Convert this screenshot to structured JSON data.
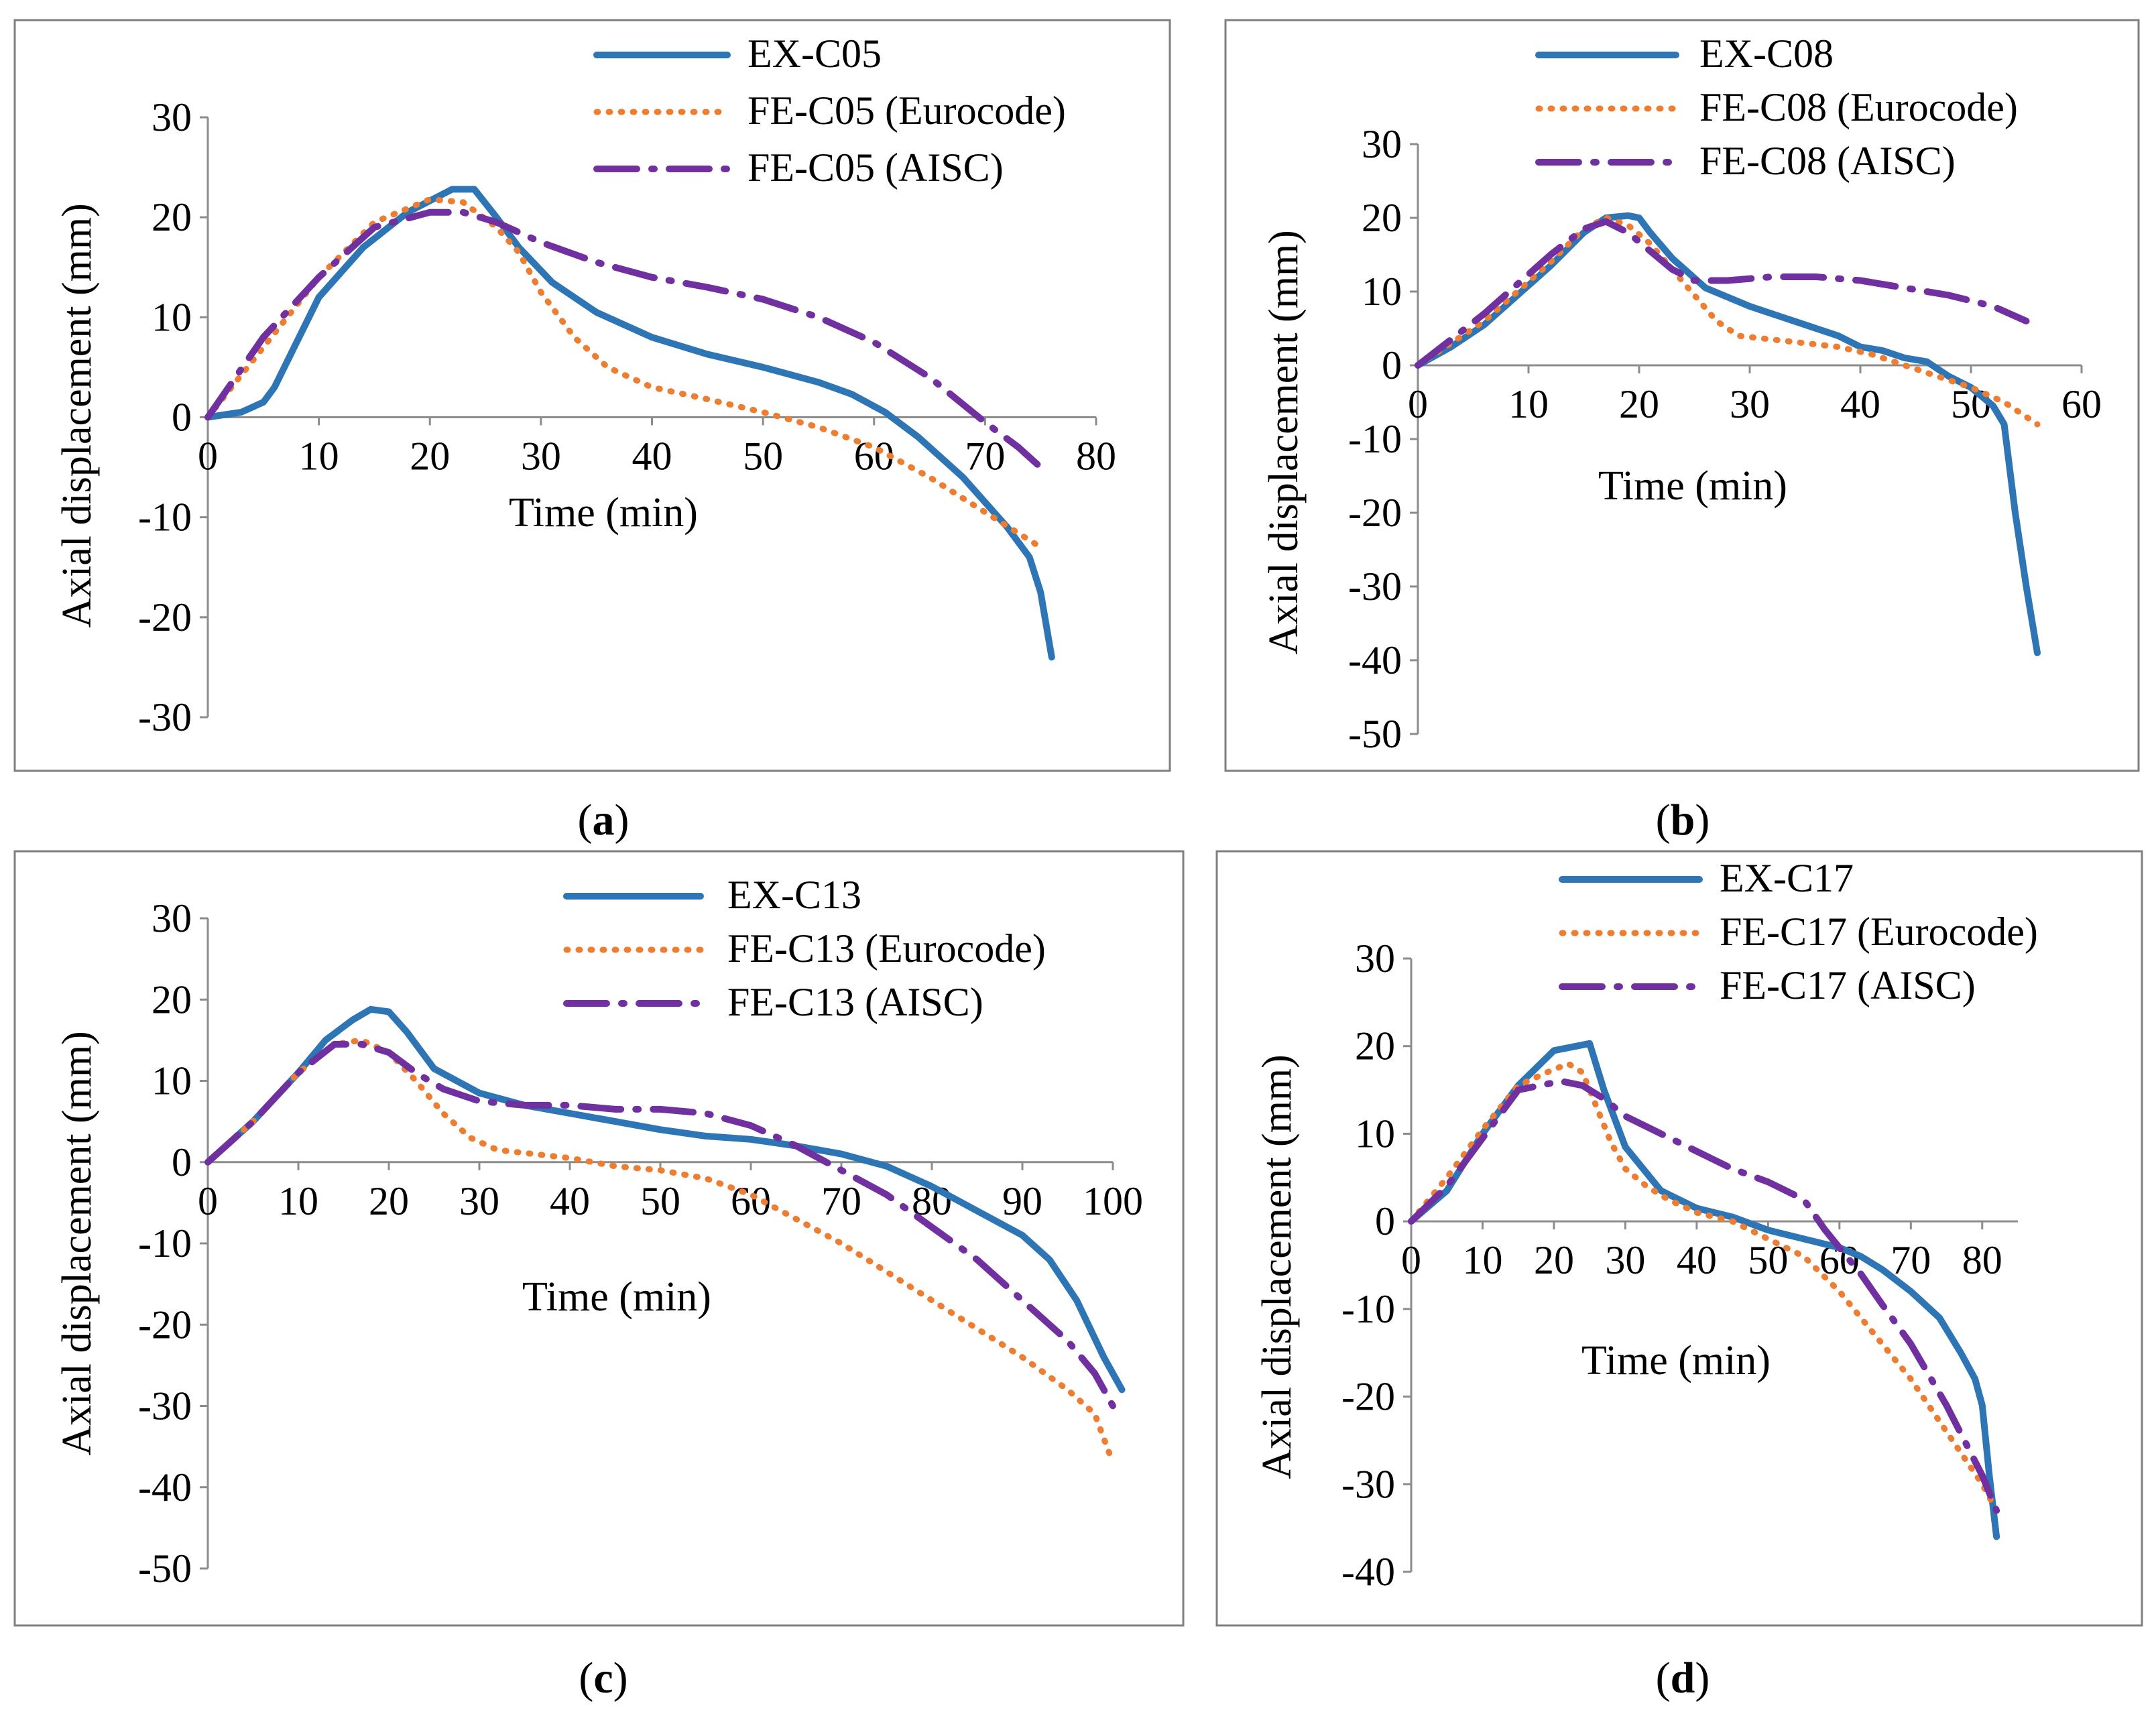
{
  "chart_data": [
    {
      "panel": "a",
      "type": "line",
      "caption": "a",
      "xlabel": "Time (min)",
      "ylabel": "Axial displacement (mm)",
      "xlim": [
        0,
        80
      ],
      "ylim": [
        -30,
        30
      ],
      "xticks": [
        "0",
        "10",
        "20",
        "30",
        "40",
        "50",
        "60",
        "70",
        "80"
      ],
      "yticks": [
        "30",
        "20",
        "10",
        "0",
        "-10",
        "-20",
        "-30"
      ],
      "colors": {
        "experiment": "#2e75b6",
        "eurocode": "#ed7d31",
        "aisc": "#7030a0"
      },
      "series": [
        {
          "name": "EX-C05",
          "style": "solid",
          "x": [
            0,
            3,
            5,
            6,
            8,
            10,
            14,
            18,
            22,
            24,
            26,
            28,
            31,
            35,
            40,
            45,
            50,
            55,
            58,
            61,
            64,
            68,
            72,
            74,
            75,
            76
          ],
          "y": [
            0,
            0.5,
            1.5,
            3,
            7.5,
            12,
            17,
            20.5,
            22.8,
            22.8,
            20,
            17,
            13.5,
            10.5,
            8,
            6.3,
            5,
            3.5,
            2.3,
            0.5,
            -2,
            -6,
            -11,
            -14,
            -17.5,
            -24
          ]
        },
        {
          "name": "FE-C05 (Eurocode)",
          "style": "dotted",
          "x": [
            0,
            5,
            10,
            15,
            20,
            23,
            26,
            28,
            30,
            33,
            36,
            40,
            45,
            50,
            55,
            60,
            65,
            70,
            75
          ],
          "y": [
            0,
            7,
            14,
            19.5,
            21.8,
            21.5,
            19,
            16.5,
            12.5,
            8,
            5,
            3,
            1.8,
            0.5,
            -1,
            -3,
            -6,
            -9.5,
            -13
          ]
        },
        {
          "name": "FE-C05 (AISC)",
          "style": "dashdot",
          "x": [
            0,
            5,
            10,
            15,
            20,
            23,
            26,
            30,
            35,
            40,
            45,
            50,
            55,
            60,
            65,
            70,
            73,
            75
          ],
          "y": [
            0,
            8,
            14,
            19,
            20.5,
            20.5,
            19.5,
            17.5,
            15.5,
            14,
            13,
            11.8,
            10,
            7.5,
            4,
            -0.5,
            -3,
            -5
          ]
        }
      ],
      "legend": {
        "position": "top-right"
      }
    },
    {
      "panel": "b",
      "type": "line",
      "caption": "b",
      "xlabel": "Time (min)",
      "ylabel": "Axial displacement (mm)",
      "xlim": [
        0,
        60
      ],
      "ylim": [
        -50,
        30
      ],
      "xticks": [
        "0",
        "10",
        "20",
        "30",
        "40",
        "50",
        "60"
      ],
      "yticks": [
        "30",
        "20",
        "10",
        "0",
        "-10",
        "-20",
        "-30",
        "-40",
        "-50"
      ],
      "colors": {
        "experiment": "#2e75b6",
        "eurocode": "#ed7d31",
        "aisc": "#7030a0"
      },
      "series": [
        {
          "name": "EX-C08",
          "style": "solid",
          "x": [
            0,
            3,
            6,
            9,
            12,
            15,
            17,
            19,
            20,
            21,
            23,
            26,
            30,
            34,
            38,
            40,
            42,
            44,
            46,
            48,
            50,
            52,
            53,
            54,
            55,
            56
          ],
          "y": [
            0,
            2.5,
            5.5,
            9.5,
            13.5,
            18,
            20,
            20.3,
            20,
            18,
            14.5,
            10.5,
            8,
            6,
            4,
            2.5,
            2,
            1,
            0.5,
            -1.5,
            -3,
            -5.5,
            -8,
            -20,
            -30,
            -39
          ]
        },
        {
          "name": "FE-C08 (Eurocode)",
          "style": "dotted",
          "x": [
            0,
            3,
            6,
            9,
            12,
            15,
            17,
            19,
            21,
            23,
            25,
            27,
            29,
            32,
            35,
            38,
            41,
            44,
            47,
            50,
            53,
            56
          ],
          "y": [
            0,
            3,
            6,
            10,
            14,
            18.5,
            20,
            19,
            16.5,
            13,
            9.5,
            6,
            4,
            3.5,
            3,
            2.5,
            1.5,
            0,
            -1.5,
            -3,
            -5,
            -8
          ]
        },
        {
          "name": "FE-C08 (AISC)",
          "style": "dashdot",
          "x": [
            0,
            3,
            6,
            9,
            12,
            15,
            17,
            19,
            21,
            23,
            25,
            28,
            32,
            36,
            40,
            44,
            48,
            52,
            55
          ],
          "y": [
            0,
            3.5,
            7,
            11,
            15,
            18.5,
            19.5,
            18,
            15.5,
            13,
            11.5,
            11.5,
            12,
            12,
            11.5,
            10.5,
            9.5,
            8,
            6
          ]
        }
      ],
      "legend": {
        "position": "top-right"
      }
    },
    {
      "panel": "c",
      "type": "line",
      "caption": "c",
      "xlabel": "Time (min)",
      "ylabel": "Axial displacement (mm)",
      "xlim": [
        0,
        100
      ],
      "ylim": [
        -50,
        30
      ],
      "xticks": [
        "0",
        "10",
        "20",
        "30",
        "40",
        "50",
        "60",
        "70",
        "80",
        "90",
        "100"
      ],
      "yticks": [
        "30",
        "20",
        "10",
        "0",
        "-10",
        "-20",
        "-30",
        "-40",
        "-50"
      ],
      "colors": {
        "experiment": "#2e75b6",
        "eurocode": "#ed7d31",
        "aisc": "#7030a0"
      },
      "series": [
        {
          "name": "EX-C13",
          "style": "solid",
          "x": [
            0,
            5,
            10,
            13,
            16,
            18,
            20,
            22,
            25,
            30,
            35,
            40,
            45,
            50,
            55,
            60,
            65,
            70,
            75,
            80,
            85,
            90,
            93,
            96,
            99,
            101
          ],
          "y": [
            0,
            5,
            11,
            15,
            17.5,
            18.8,
            18.5,
            16,
            11.5,
            8.5,
            7,
            6,
            5,
            4,
            3.2,
            2.8,
            2,
            1,
            -0.5,
            -3,
            -6,
            -9,
            -12,
            -17,
            -24,
            -28
          ]
        },
        {
          "name": "FE-C13 (Eurocode)",
          "style": "dotted",
          "x": [
            0,
            5,
            10,
            14,
            17,
            20,
            23,
            26,
            29,
            32,
            36,
            40,
            45,
            50,
            55,
            60,
            65,
            70,
            75,
            80,
            85,
            90,
            95,
            98,
            100
          ],
          "y": [
            0,
            5,
            11,
            14.5,
            15,
            13.5,
            10,
            6,
            3,
            1.5,
            1,
            0.5,
            -0.5,
            -1,
            -2,
            -4,
            -7,
            -10,
            -13.5,
            -17,
            -20.5,
            -24,
            -28,
            -31,
            -37
          ]
        },
        {
          "name": "FE-C13 (AISC)",
          "style": "dashdot",
          "x": [
            0,
            5,
            10,
            14,
            17,
            20,
            23,
            26,
            30,
            35,
            40,
            45,
            50,
            55,
            60,
            65,
            70,
            75,
            80,
            85,
            90,
            95,
            98,
            100
          ],
          "y": [
            0,
            5,
            11,
            14.5,
            14.5,
            13.5,
            11,
            9,
            7.5,
            7,
            7,
            6.5,
            6.5,
            6,
            4.5,
            2,
            -1,
            -4,
            -8,
            -12,
            -17,
            -22,
            -26,
            -30
          ]
        }
      ],
      "legend": {
        "position": "top-right"
      }
    },
    {
      "panel": "d",
      "type": "line",
      "caption": "d",
      "xlabel": "Time (min)",
      "ylabel": "Axial displacement (mm)",
      "xlim": [
        0,
        85
      ],
      "ylim": [
        -40,
        30
      ],
      "xticks": [
        "0",
        "10",
        "20",
        "30",
        "40",
        "50",
        "60",
        "70",
        "80"
      ],
      "yticks": [
        "30",
        "20",
        "10",
        "0",
        "-10",
        "-20",
        "-30",
        "-40"
      ],
      "colors": {
        "experiment": "#2e75b6",
        "eurocode": "#ed7d31",
        "aisc": "#7030a0"
      },
      "series": [
        {
          "name": "EX-C17",
          "style": "solid",
          "x": [
            0,
            5,
            10,
            15,
            20,
            25,
            27,
            30,
            35,
            40,
            45,
            50,
            55,
            60,
            63,
            66,
            70,
            74,
            77,
            79,
            80,
            81,
            82
          ],
          "y": [
            0,
            3.5,
            10,
            15.5,
            19.5,
            20.3,
            15,
            8.5,
            3.5,
            1.5,
            0.5,
            -1,
            -2,
            -3,
            -4,
            -5.5,
            -8,
            -11,
            -15,
            -18,
            -21,
            -29,
            -36
          ]
        },
        {
          "name": "FE-C17 (Eurocode)",
          "style": "dotted",
          "x": [
            0,
            5,
            10,
            15,
            19,
            22,
            24,
            26,
            28,
            30,
            33,
            36,
            40,
            45,
            50,
            55,
            60,
            65,
            70,
            75,
            80,
            82
          ],
          "y": [
            0,
            5,
            10.5,
            15.5,
            17,
            18,
            17,
            13,
            9,
            6,
            4,
            2.5,
            1,
            0,
            -2,
            -4,
            -8,
            -13,
            -18,
            -24,
            -30,
            -33
          ]
        },
        {
          "name": "FE-C17 (AISC)",
          "style": "dashdot",
          "x": [
            0,
            5,
            10,
            15,
            18,
            21,
            24,
            27,
            30,
            35,
            40,
            45,
            50,
            55,
            58,
            60,
            63,
            66,
            70,
            75,
            80,
            82
          ],
          "y": [
            0,
            4,
            9.5,
            15,
            15.5,
            16,
            15.5,
            14,
            12,
            10,
            8,
            6,
            4.5,
            2.5,
            -1,
            -3,
            -6,
            -9.5,
            -14,
            -21,
            -29,
            -33
          ]
        }
      ],
      "legend": {
        "position": "top-right"
      }
    }
  ]
}
